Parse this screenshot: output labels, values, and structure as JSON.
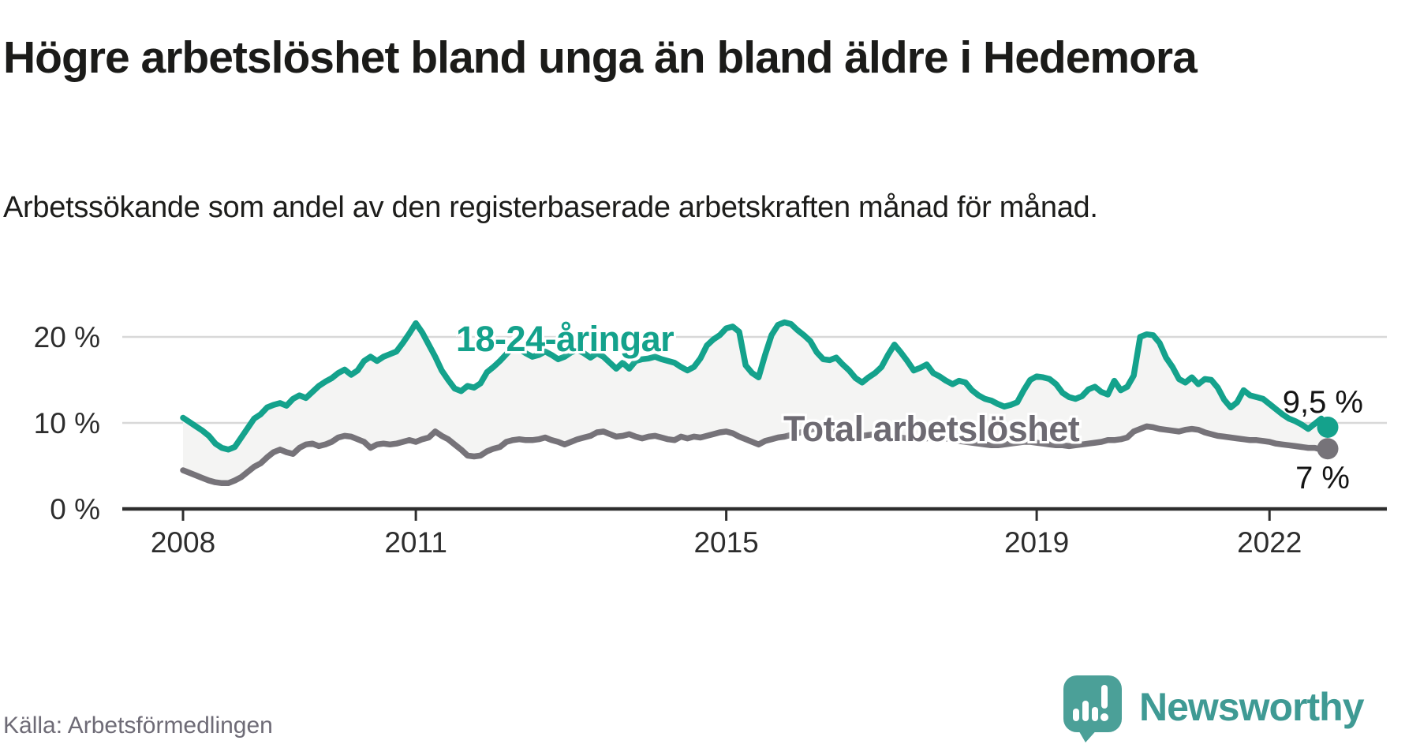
{
  "header": {
    "title": "Högre arbetslöshet bland unga än bland äldre i Hedemora",
    "subtitle": "Arbetssökande som andel av den registerbaserade arbetskraften månad för månad."
  },
  "footer": {
    "source": "Källa: Arbetsförmedlingen",
    "brand": "Newsworthy"
  },
  "colors": {
    "young_series": "#14a28c",
    "total_series": "#767379",
    "area_fill": "#f4f4f3",
    "gridline": "#d8d8d8",
    "axis": "#2e2e2e",
    "axis_text": "#2d2d2d",
    "end_label_text": "#141414",
    "total_label_text": "#6d6a72",
    "logo_teal": "#4ba098",
    "wordmark_teal": "#3f9a94"
  },
  "chart_data": {
    "type": "line",
    "title": "Högre arbetslöshet bland unga än bland äldre i Hedemora",
    "frequency": "monthly",
    "x_start": "2008-01",
    "x_end": "2022-10",
    "grid": "horizontal",
    "area_fill_between": true,
    "ylim": [
      0,
      24
    ],
    "x_ticks": [
      {
        "label": "2008",
        "year": 2008
      },
      {
        "label": "2011",
        "year": 2011
      },
      {
        "label": "2015",
        "year": 2015
      },
      {
        "label": "2019",
        "year": 2019
      },
      {
        "label": "2022",
        "year": 2022
      }
    ],
    "y_ticks": [
      {
        "label": "20 %",
        "value": 20
      },
      {
        "label": "10 %",
        "value": 10
      },
      {
        "label": "0 %",
        "value": 0
      }
    ],
    "series": [
      {
        "name": "18-24-åringar",
        "color": "#14a28c",
        "end_label": "9,5 %",
        "end_value": 9.5,
        "values": [
          10.6,
          10.1,
          9.6,
          9.1,
          8.5,
          7.6,
          7.1,
          6.9,
          7.2,
          8.3,
          9.4,
          10.5,
          11.0,
          11.8,
          12.1,
          12.3,
          12.0,
          12.8,
          13.2,
          12.9,
          13.6,
          14.3,
          14.8,
          15.2,
          15.8,
          16.2,
          15.6,
          16.1,
          17.2,
          17.7,
          17.2,
          17.7,
          18.0,
          18.3,
          19.3,
          20.4,
          21.6,
          20.5,
          19.1,
          17.7,
          16.1,
          15.0,
          14.0,
          13.7,
          14.3,
          14.1,
          14.6,
          15.9,
          16.5,
          17.2,
          18.0,
          18.8,
          18.6,
          18.1,
          17.7,
          17.9,
          18.3,
          17.9,
          17.4,
          17.7,
          18.2,
          18.5,
          18.1,
          17.6,
          18.1,
          17.7,
          17.0,
          16.3,
          17.0,
          16.3,
          17.2,
          17.4,
          17.5,
          17.7,
          17.4,
          17.2,
          17.0,
          16.5,
          16.1,
          16.5,
          17.5,
          19.0,
          19.7,
          20.2,
          21.0,
          21.2,
          20.6,
          16.7,
          15.8,
          15.3,
          17.9,
          20.2,
          21.4,
          21.7,
          21.5,
          20.8,
          20.2,
          19.5,
          18.2,
          17.4,
          17.3,
          17.6,
          16.8,
          16.1,
          15.2,
          14.7,
          15.3,
          15.8,
          16.5,
          17.9,
          19.1,
          18.2,
          17.2,
          16.1,
          16.4,
          16.8,
          15.8,
          15.4,
          14.9,
          14.5,
          14.9,
          14.7,
          13.8,
          13.2,
          12.8,
          12.6,
          12.2,
          11.9,
          12.1,
          12.4,
          13.8,
          15.0,
          15.4,
          15.3,
          15.1,
          14.5,
          13.5,
          13.0,
          12.8,
          13.1,
          13.9,
          14.2,
          13.6,
          13.3,
          14.9,
          13.8,
          14.2,
          15.5,
          20.0,
          20.3,
          20.2,
          19.3,
          17.6,
          16.5,
          15.1,
          14.7,
          15.3,
          14.5,
          15.1,
          15.0,
          14.1,
          12.7,
          11.8,
          12.4,
          13.8,
          13.2,
          13.0,
          12.8,
          12.2,
          11.6,
          11.0,
          10.5,
          10.2,
          9.8,
          9.3,
          9.9,
          10.5,
          9.5
        ]
      },
      {
        "name": "Total arbetslöshet",
        "color": "#767379",
        "end_label": "7 %",
        "end_value": 7,
        "values": [
          4.5,
          4.2,
          3.9,
          3.6,
          3.3,
          3.1,
          3.0,
          3.0,
          3.3,
          3.7,
          4.3,
          4.9,
          5.3,
          6.0,
          6.6,
          6.9,
          6.6,
          6.4,
          7.1,
          7.5,
          7.6,
          7.3,
          7.5,
          7.8,
          8.3,
          8.5,
          8.4,
          8.1,
          7.8,
          7.1,
          7.5,
          7.6,
          7.5,
          7.6,
          7.8,
          8.0,
          7.8,
          8.1,
          8.3,
          9.0,
          8.5,
          8.1,
          7.5,
          6.9,
          6.2,
          6.1,
          6.2,
          6.7,
          7.0,
          7.2,
          7.8,
          8.0,
          8.1,
          8.0,
          8.0,
          8.1,
          8.3,
          8.0,
          7.8,
          7.5,
          7.8,
          8.1,
          8.3,
          8.5,
          8.9,
          9.0,
          8.7,
          8.4,
          8.5,
          8.7,
          8.4,
          8.2,
          8.4,
          8.5,
          8.3,
          8.1,
          8.0,
          8.4,
          8.2,
          8.4,
          8.3,
          8.5,
          8.7,
          8.9,
          9.0,
          8.8,
          8.4,
          8.1,
          7.8,
          7.5,
          7.9,
          8.1,
          8.3,
          8.4,
          8.6,
          8.8,
          9.0,
          9.2,
          9.4,
          9.3,
          9.1,
          8.9,
          8.8,
          8.7,
          8.6,
          8.5,
          8.6,
          8.7,
          8.6,
          8.5,
          8.4,
          8.3,
          8.2,
          8.1,
          8.1,
          8.2,
          8.4,
          8.3,
          8.2,
          8.0,
          7.9,
          7.8,
          7.7,
          7.6,
          7.5,
          7.4,
          7.4,
          7.5,
          7.6,
          7.7,
          7.8,
          7.8,
          7.7,
          7.6,
          7.5,
          7.4,
          7.4,
          7.3,
          7.4,
          7.5,
          7.6,
          7.7,
          7.8,
          8.0,
          8.0,
          8.1,
          8.3,
          9.0,
          9.3,
          9.6,
          9.5,
          9.3,
          9.2,
          9.1,
          9.0,
          9.2,
          9.3,
          9.2,
          8.9,
          8.7,
          8.5,
          8.4,
          8.3,
          8.2,
          8.1,
          8.0,
          8.0,
          7.9,
          7.8,
          7.6,
          7.5,
          7.4,
          7.3,
          7.2,
          7.1,
          7.1,
          6.9,
          7.0
        ]
      }
    ]
  }
}
